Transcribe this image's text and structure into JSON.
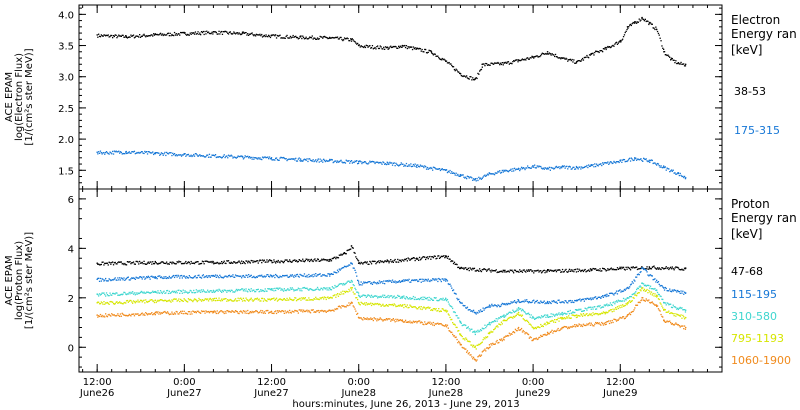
{
  "chart_data": [
    {
      "type": "scatter",
      "ylabel_lines": [
        "ACE EPAM",
        "log(Electron Flux)",
        "[1/(cm²s ster MeV)]"
      ],
      "ylim": [
        1.2,
        4.15
      ],
      "yticks": [
        "1.5",
        "2.0",
        "2.5",
        "3.0",
        "3.5",
        "4.0"
      ],
      "ytick_values": [
        1.5,
        2.0,
        2.5,
        3.0,
        3.5,
        4.0
      ],
      "legend": {
        "title": "Electron",
        "subtitle": "Energy ran",
        "unit": "[keV]",
        "placement": "right"
      },
      "series": [
        {
          "name": "38-53",
          "color": "#000000",
          "points": [
            [
              0,
              3.67
            ],
            [
              4,
              3.65
            ],
            [
              8,
              3.68
            ],
            [
              12,
              3.7
            ],
            [
              16,
              3.72
            ],
            [
              20,
              3.7
            ],
            [
              24,
              3.66
            ],
            [
              28,
              3.64
            ],
            [
              32,
              3.63
            ],
            [
              35,
              3.6
            ],
            [
              36,
              3.5
            ],
            [
              40,
              3.47
            ],
            [
              42,
              3.5
            ],
            [
              44,
              3.45
            ],
            [
              46,
              3.4
            ],
            [
              48,
              3.25
            ],
            [
              50,
              3.05
            ],
            [
              52,
              2.96
            ],
            [
              53,
              3.2
            ],
            [
              56,
              3.22
            ],
            [
              58,
              3.27
            ],
            [
              60,
              3.32
            ],
            [
              62,
              3.4
            ],
            [
              64,
              3.3
            ],
            [
              66,
              3.24
            ],
            [
              68,
              3.37
            ],
            [
              70,
              3.46
            ],
            [
              72,
              3.58
            ],
            [
              73,
              3.8
            ],
            [
              74,
              3.88
            ],
            [
              75,
              3.95
            ],
            [
              76,
              3.86
            ],
            [
              77,
              3.76
            ],
            [
              78,
              3.4
            ],
            [
              79,
              3.28
            ],
            [
              80,
              3.22
            ],
            [
              81,
              3.2
            ]
          ]
        },
        {
          "name": "175-315",
          "color": "#1677d6",
          "points": [
            [
              0,
              1.79
            ],
            [
              4,
              1.8
            ],
            [
              8,
              1.78
            ],
            [
              12,
              1.76
            ],
            [
              16,
              1.74
            ],
            [
              20,
              1.72
            ],
            [
              24,
              1.7
            ],
            [
              28,
              1.68
            ],
            [
              32,
              1.66
            ],
            [
              36,
              1.64
            ],
            [
              40,
              1.62
            ],
            [
              44,
              1.58
            ],
            [
              48,
              1.5
            ],
            [
              50,
              1.43
            ],
            [
              52,
              1.35
            ],
            [
              54,
              1.45
            ],
            [
              56,
              1.5
            ],
            [
              58,
              1.53
            ],
            [
              60,
              1.57
            ],
            [
              62,
              1.53
            ],
            [
              64,
              1.56
            ],
            [
              66,
              1.55
            ],
            [
              68,
              1.58
            ],
            [
              70,
              1.62
            ],
            [
              72,
              1.65
            ],
            [
              74,
              1.7
            ],
            [
              76,
              1.66
            ],
            [
              78,
              1.55
            ],
            [
              80,
              1.45
            ],
            [
              81,
              1.38
            ]
          ]
        }
      ]
    },
    {
      "type": "scatter",
      "ylabel_lines": [
        "ACE EPAM",
        "log(Proton Flux)",
        "[1/(cm²s ster MeV)]"
      ],
      "ylim": [
        -1.0,
        6.4
      ],
      "yticks": [
        "0",
        "2",
        "4",
        "6"
      ],
      "ytick_values": [
        0,
        2,
        4,
        6
      ],
      "legend": {
        "title": "Proton",
        "subtitle": "Energy ran",
        "unit": "[keV]",
        "placement": "right"
      },
      "series": [
        {
          "name": "47-68",
          "color": "#000000",
          "points": [
            [
              0,
              3.4
            ],
            [
              8,
              3.45
            ],
            [
              16,
              3.45
            ],
            [
              24,
              3.5
            ],
            [
              32,
              3.55
            ],
            [
              34,
              3.8
            ],
            [
              35,
              4.1
            ],
            [
              36,
              3.4
            ],
            [
              40,
              3.5
            ],
            [
              44,
              3.6
            ],
            [
              48,
              3.7
            ],
            [
              50,
              3.2
            ],
            [
              56,
              3.1
            ],
            [
              62,
              3.1
            ],
            [
              68,
              3.15
            ],
            [
              72,
              3.2
            ],
            [
              76,
              3.25
            ],
            [
              81,
              3.2
            ]
          ]
        },
        {
          "name": "115-195",
          "color": "#1677d6",
          "points": [
            [
              0,
              2.75
            ],
            [
              8,
              2.85
            ],
            [
              16,
              2.9
            ],
            [
              24,
              2.9
            ],
            [
              32,
              2.95
            ],
            [
              35,
              3.4
            ],
            [
              36,
              2.6
            ],
            [
              42,
              2.7
            ],
            [
              48,
              2.75
            ],
            [
              50,
              1.8
            ],
            [
              52,
              1.4
            ],
            [
              54,
              1.7
            ],
            [
              56,
              1.75
            ],
            [
              58,
              1.9
            ],
            [
              62,
              1.85
            ],
            [
              66,
              1.9
            ],
            [
              70,
              2.1
            ],
            [
              73,
              2.4
            ],
            [
              75,
              3.2
            ],
            [
              78,
              2.4
            ],
            [
              81,
              2.2
            ]
          ]
        },
        {
          "name": "310-580",
          "color": "#3fd6cf",
          "points": [
            [
              0,
              2.15
            ],
            [
              8,
              2.25
            ],
            [
              16,
              2.3
            ],
            [
              24,
              2.35
            ],
            [
              32,
              2.4
            ],
            [
              35,
              2.7
            ],
            [
              36,
              2.1
            ],
            [
              42,
              2.05
            ],
            [
              48,
              1.95
            ],
            [
              50,
              1.0
            ],
            [
              52,
              0.6
            ],
            [
              54,
              1.0
            ],
            [
              56,
              1.3
            ],
            [
              58,
              1.6
            ],
            [
              60,
              1.2
            ],
            [
              62,
              1.3
            ],
            [
              64,
              1.4
            ],
            [
              66,
              1.5
            ],
            [
              70,
              1.7
            ],
            [
              73,
              2.0
            ],
            [
              75,
              2.6
            ],
            [
              77,
              2.3
            ],
            [
              78,
              1.8
            ],
            [
              81,
              1.5
            ]
          ]
        },
        {
          "name": "795-1193",
          "color": "#d6e600",
          "points": [
            [
              0,
              1.8
            ],
            [
              8,
              1.9
            ],
            [
              16,
              1.95
            ],
            [
              24,
              1.95
            ],
            [
              32,
              2.0
            ],
            [
              35,
              2.4
            ],
            [
              36,
              1.8
            ],
            [
              42,
              1.7
            ],
            [
              48,
              1.5
            ],
            [
              50,
              0.5
            ],
            [
              52,
              0.0
            ],
            [
              54,
              0.6
            ],
            [
              56,
              1.1
            ],
            [
              58,
              1.4
            ],
            [
              60,
              0.8
            ],
            [
              62,
              1.0
            ],
            [
              64,
              1.2
            ],
            [
              66,
              1.3
            ],
            [
              70,
              1.4
            ],
            [
              73,
              1.8
            ],
            [
              75,
              2.4
            ],
            [
              77,
              2.1
            ],
            [
              78,
              1.5
            ],
            [
              81,
              1.2
            ]
          ]
        },
        {
          "name": "1060-1900",
          "color": "#f08a1c",
          "points": [
            [
              0,
              1.3
            ],
            [
              8,
              1.4
            ],
            [
              16,
              1.45
            ],
            [
              24,
              1.45
            ],
            [
              32,
              1.5
            ],
            [
              35,
              1.8
            ],
            [
              36,
              1.2
            ],
            [
              42,
              1.1
            ],
            [
              48,
              0.9
            ],
            [
              50,
              0.1
            ],
            [
              52,
              -0.5
            ],
            [
              54,
              0.1
            ],
            [
              56,
              0.4
            ],
            [
              58,
              0.8
            ],
            [
              60,
              0.3
            ],
            [
              62,
              0.6
            ],
            [
              64,
              0.8
            ],
            [
              66,
              0.9
            ],
            [
              70,
              1.0
            ],
            [
              73,
              1.3
            ],
            [
              75,
              2.0
            ],
            [
              77,
              1.7
            ],
            [
              78,
              1.1
            ],
            [
              81,
              0.8
            ]
          ]
        }
      ]
    }
  ],
  "x_axis": {
    "range_hours": [
      -2.5,
      86
    ],
    "ticks": [
      {
        "hours": 0,
        "time": "12:00",
        "date": "June26"
      },
      {
        "hours": 12,
        "time": "0:00",
        "date": "June27"
      },
      {
        "hours": 24,
        "time": "12:00",
        "date": "June27"
      },
      {
        "hours": 36,
        "time": "0:00",
        "date": "June28"
      },
      {
        "hours": 48,
        "time": "12:00",
        "date": "June28"
      },
      {
        "hours": 60,
        "time": "0:00",
        "date": "June29"
      },
      {
        "hours": 72,
        "time": "12:00",
        "date": "June29"
      }
    ],
    "label": "hours:minutes, June 26, 2013 - June 29, 2013"
  }
}
